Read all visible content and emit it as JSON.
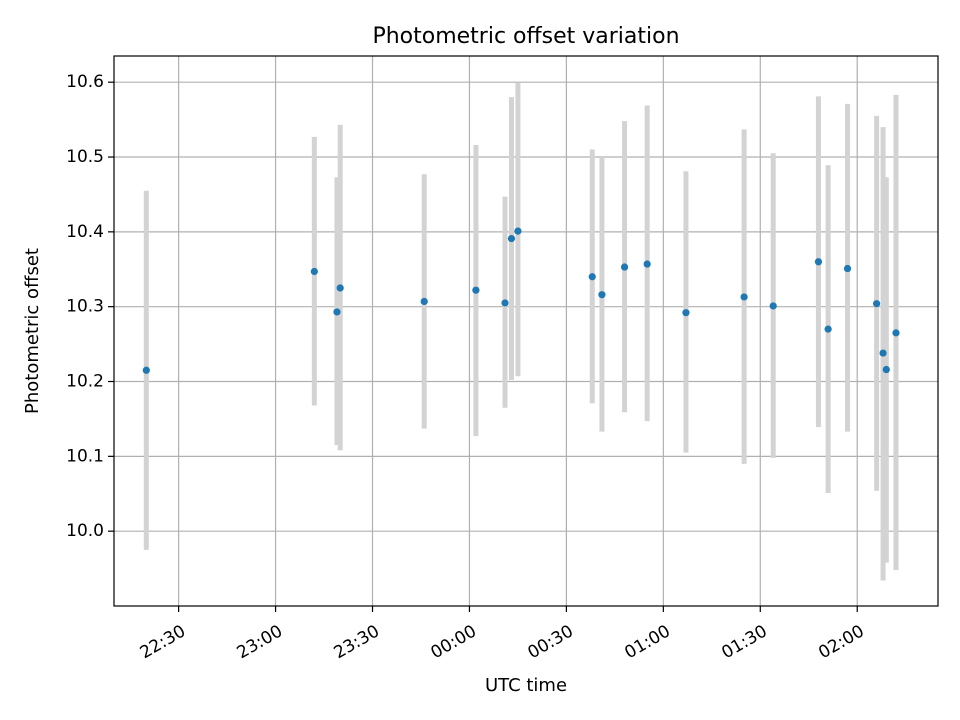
{
  "chart_data": {
    "type": "scatter",
    "title": "Photometric offset variation",
    "xlabel": "UTC time",
    "ylabel": "Photometric offset",
    "grid": true,
    "xlim": [
      "22:10",
      "26:25"
    ],
    "ylim": [
      9.9,
      10.635
    ],
    "x_ticks": [
      "22:30",
      "23:00",
      "23:30",
      "00:00",
      "00:30",
      "01:00",
      "01:30",
      "02:00"
    ],
    "y_ticks": [
      "10.0",
      "10.1",
      "10.2",
      "10.3",
      "10.4",
      "10.5",
      "10.6"
    ],
    "series": [
      {
        "color": "#1f77b4",
        "errorbar_color": "#d3d3d3",
        "points": [
          {
            "x": "22:20",
            "y": 10.215,
            "lo": 9.975,
            "hi": 10.455
          },
          {
            "x": "23:12",
            "y": 10.347,
            "lo": 10.168,
            "hi": 10.527
          },
          {
            "x": "23:19",
            "y": 10.293,
            "lo": 10.115,
            "hi": 10.473
          },
          {
            "x": "23:20",
            "y": 10.325,
            "lo": 10.108,
            "hi": 10.543
          },
          {
            "x": "23:46",
            "y": 10.307,
            "lo": 10.137,
            "hi": 10.477
          },
          {
            "x": "00:02",
            "y": 10.322,
            "lo": 10.127,
            "hi": 10.516
          },
          {
            "x": "00:11",
            "y": 10.305,
            "lo": 10.165,
            "hi": 10.447
          },
          {
            "x": "00:13",
            "y": 10.391,
            "lo": 10.202,
            "hi": 10.58
          },
          {
            "x": "00:15",
            "y": 10.401,
            "lo": 10.207,
            "hi": 10.599
          },
          {
            "x": "00:38",
            "y": 10.34,
            "lo": 10.171,
            "hi": 10.51
          },
          {
            "x": "00:41",
            "y": 10.316,
            "lo": 10.133,
            "hi": 10.5
          },
          {
            "x": "00:48",
            "y": 10.353,
            "lo": 10.159,
            "hi": 10.548
          },
          {
            "x": "00:55",
            "y": 10.357,
            "lo": 10.147,
            "hi": 10.569
          },
          {
            "x": "01:07",
            "y": 10.292,
            "lo": 10.105,
            "hi": 10.481
          },
          {
            "x": "01:25",
            "y": 10.313,
            "lo": 10.09,
            "hi": 10.537
          },
          {
            "x": "01:34",
            "y": 10.301,
            "lo": 10.098,
            "hi": 10.505
          },
          {
            "x": "01:48",
            "y": 10.36,
            "lo": 10.139,
            "hi": 10.581
          },
          {
            "x": "01:51",
            "y": 10.27,
            "lo": 10.051,
            "hi": 10.489
          },
          {
            "x": "01:57",
            "y": 10.351,
            "lo": 10.133,
            "hi": 10.571
          },
          {
            "x": "02:06",
            "y": 10.304,
            "lo": 10.054,
            "hi": 10.555
          },
          {
            "x": "02:08",
            "y": 10.238,
            "lo": 9.934,
            "hi": 10.54
          },
          {
            "x": "02:09",
            "y": 10.216,
            "lo": 9.958,
            "hi": 10.473
          },
          {
            "x": "02:12",
            "y": 10.265,
            "lo": 9.948,
            "hi": 10.583
          }
        ]
      }
    ]
  }
}
